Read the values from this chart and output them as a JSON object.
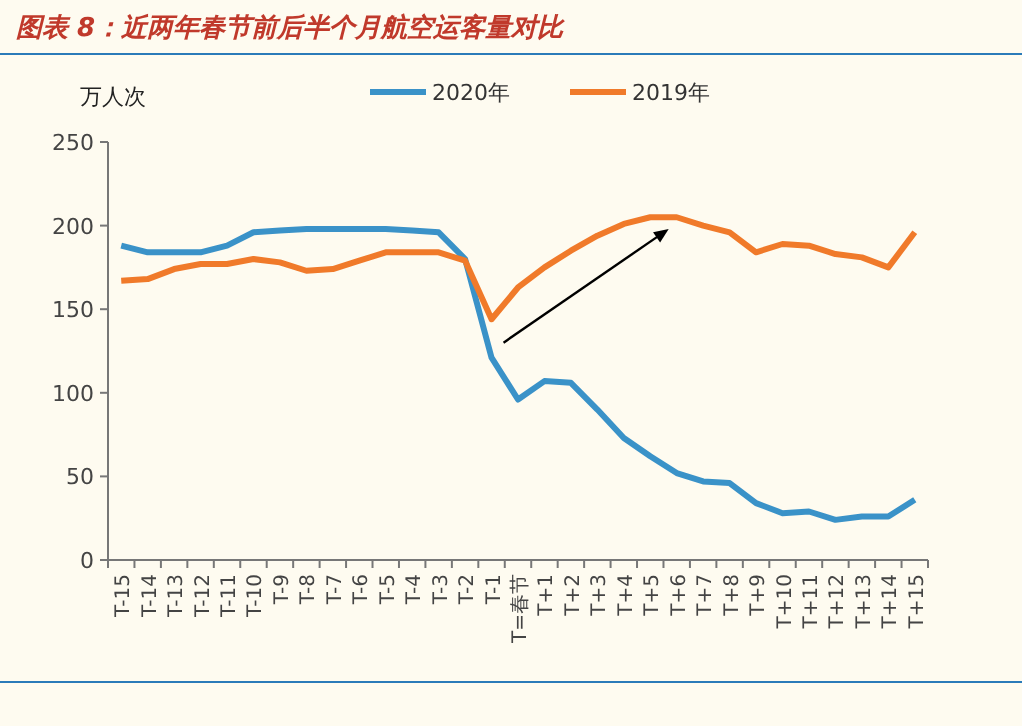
{
  "chart_data": {
    "type": "line",
    "title": "图表 8：近两年春节前后半个月航空运客量对比",
    "ylabel": "万人次",
    "categories": [
      "T-15",
      "T-14",
      "T-13",
      "T-12",
      "T-11",
      "T-10",
      "T-9",
      "T-8",
      "T-7",
      "T-6",
      "T-5",
      "T-4",
      "T-3",
      "T-2",
      "T-1",
      "T=春节",
      "T+1",
      "T+2",
      "T+3",
      "T+4",
      "T+5",
      "T+6",
      "T+7",
      "T+8",
      "T+9",
      "T+10",
      "T+11",
      "T+12",
      "T+13",
      "T+14",
      "T+15"
    ],
    "series": [
      {
        "name": "2020年",
        "color": "#3a92c8",
        "values": [
          188,
          184,
          184,
          184,
          188,
          196,
          197,
          198,
          198,
          198,
          198,
          197,
          196,
          180,
          121,
          96,
          107,
          106,
          90,
          73,
          62,
          52,
          47,
          46,
          34,
          28,
          29,
          24,
          26,
          26,
          36
        ]
      },
      {
        "name": "2019年",
        "color": "#f07a2a",
        "values": [
          167,
          168,
          174,
          177,
          177,
          180,
          178,
          173,
          174,
          179,
          184,
          184,
          184,
          179,
          144,
          163,
          175,
          185,
          194,
          201,
          205,
          205,
          200,
          196,
          184,
          189,
          188,
          183,
          181,
          175,
          196
        ]
      }
    ],
    "ylim": [
      0,
      250
    ],
    "yticks": [
      0,
      50,
      100,
      150,
      200,
      250
    ],
    "grid": false,
    "legend": "top",
    "marker": "none",
    "line_style": "solid"
  }
}
